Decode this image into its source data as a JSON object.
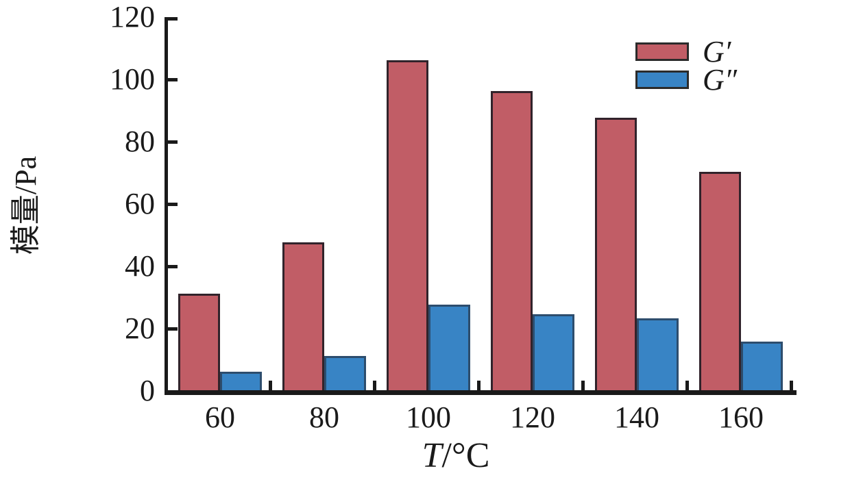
{
  "figure": {
    "background": "#ffffff",
    "axis_color": "#1a1a1a",
    "text_color": "#1a1a1a"
  },
  "chart_data": {
    "type": "bar",
    "title": "",
    "categories": [
      "60",
      "80",
      "100",
      "120",
      "140",
      "160"
    ],
    "xlabel": "T/°C",
    "xlabel_variable": "T",
    "xlabel_unit": "/°C",
    "ylabel": "模量/Pa",
    "ylim": [
      0,
      120
    ],
    "yticks": [
      0,
      20,
      40,
      60,
      80,
      100,
      120
    ],
    "grid": false,
    "legend_position": "top-right",
    "series": [
      {
        "name": "G′",
        "color": "#c15d66",
        "border_color": "#31232b",
        "values": [
          31,
          47.5,
          106,
          96,
          87.5,
          70
        ]
      },
      {
        "name": "G″",
        "color": "#3884c5",
        "border_color": "#2d4d6d",
        "values": [
          6,
          11,
          27.5,
          24.5,
          23,
          15.5
        ]
      }
    ]
  }
}
